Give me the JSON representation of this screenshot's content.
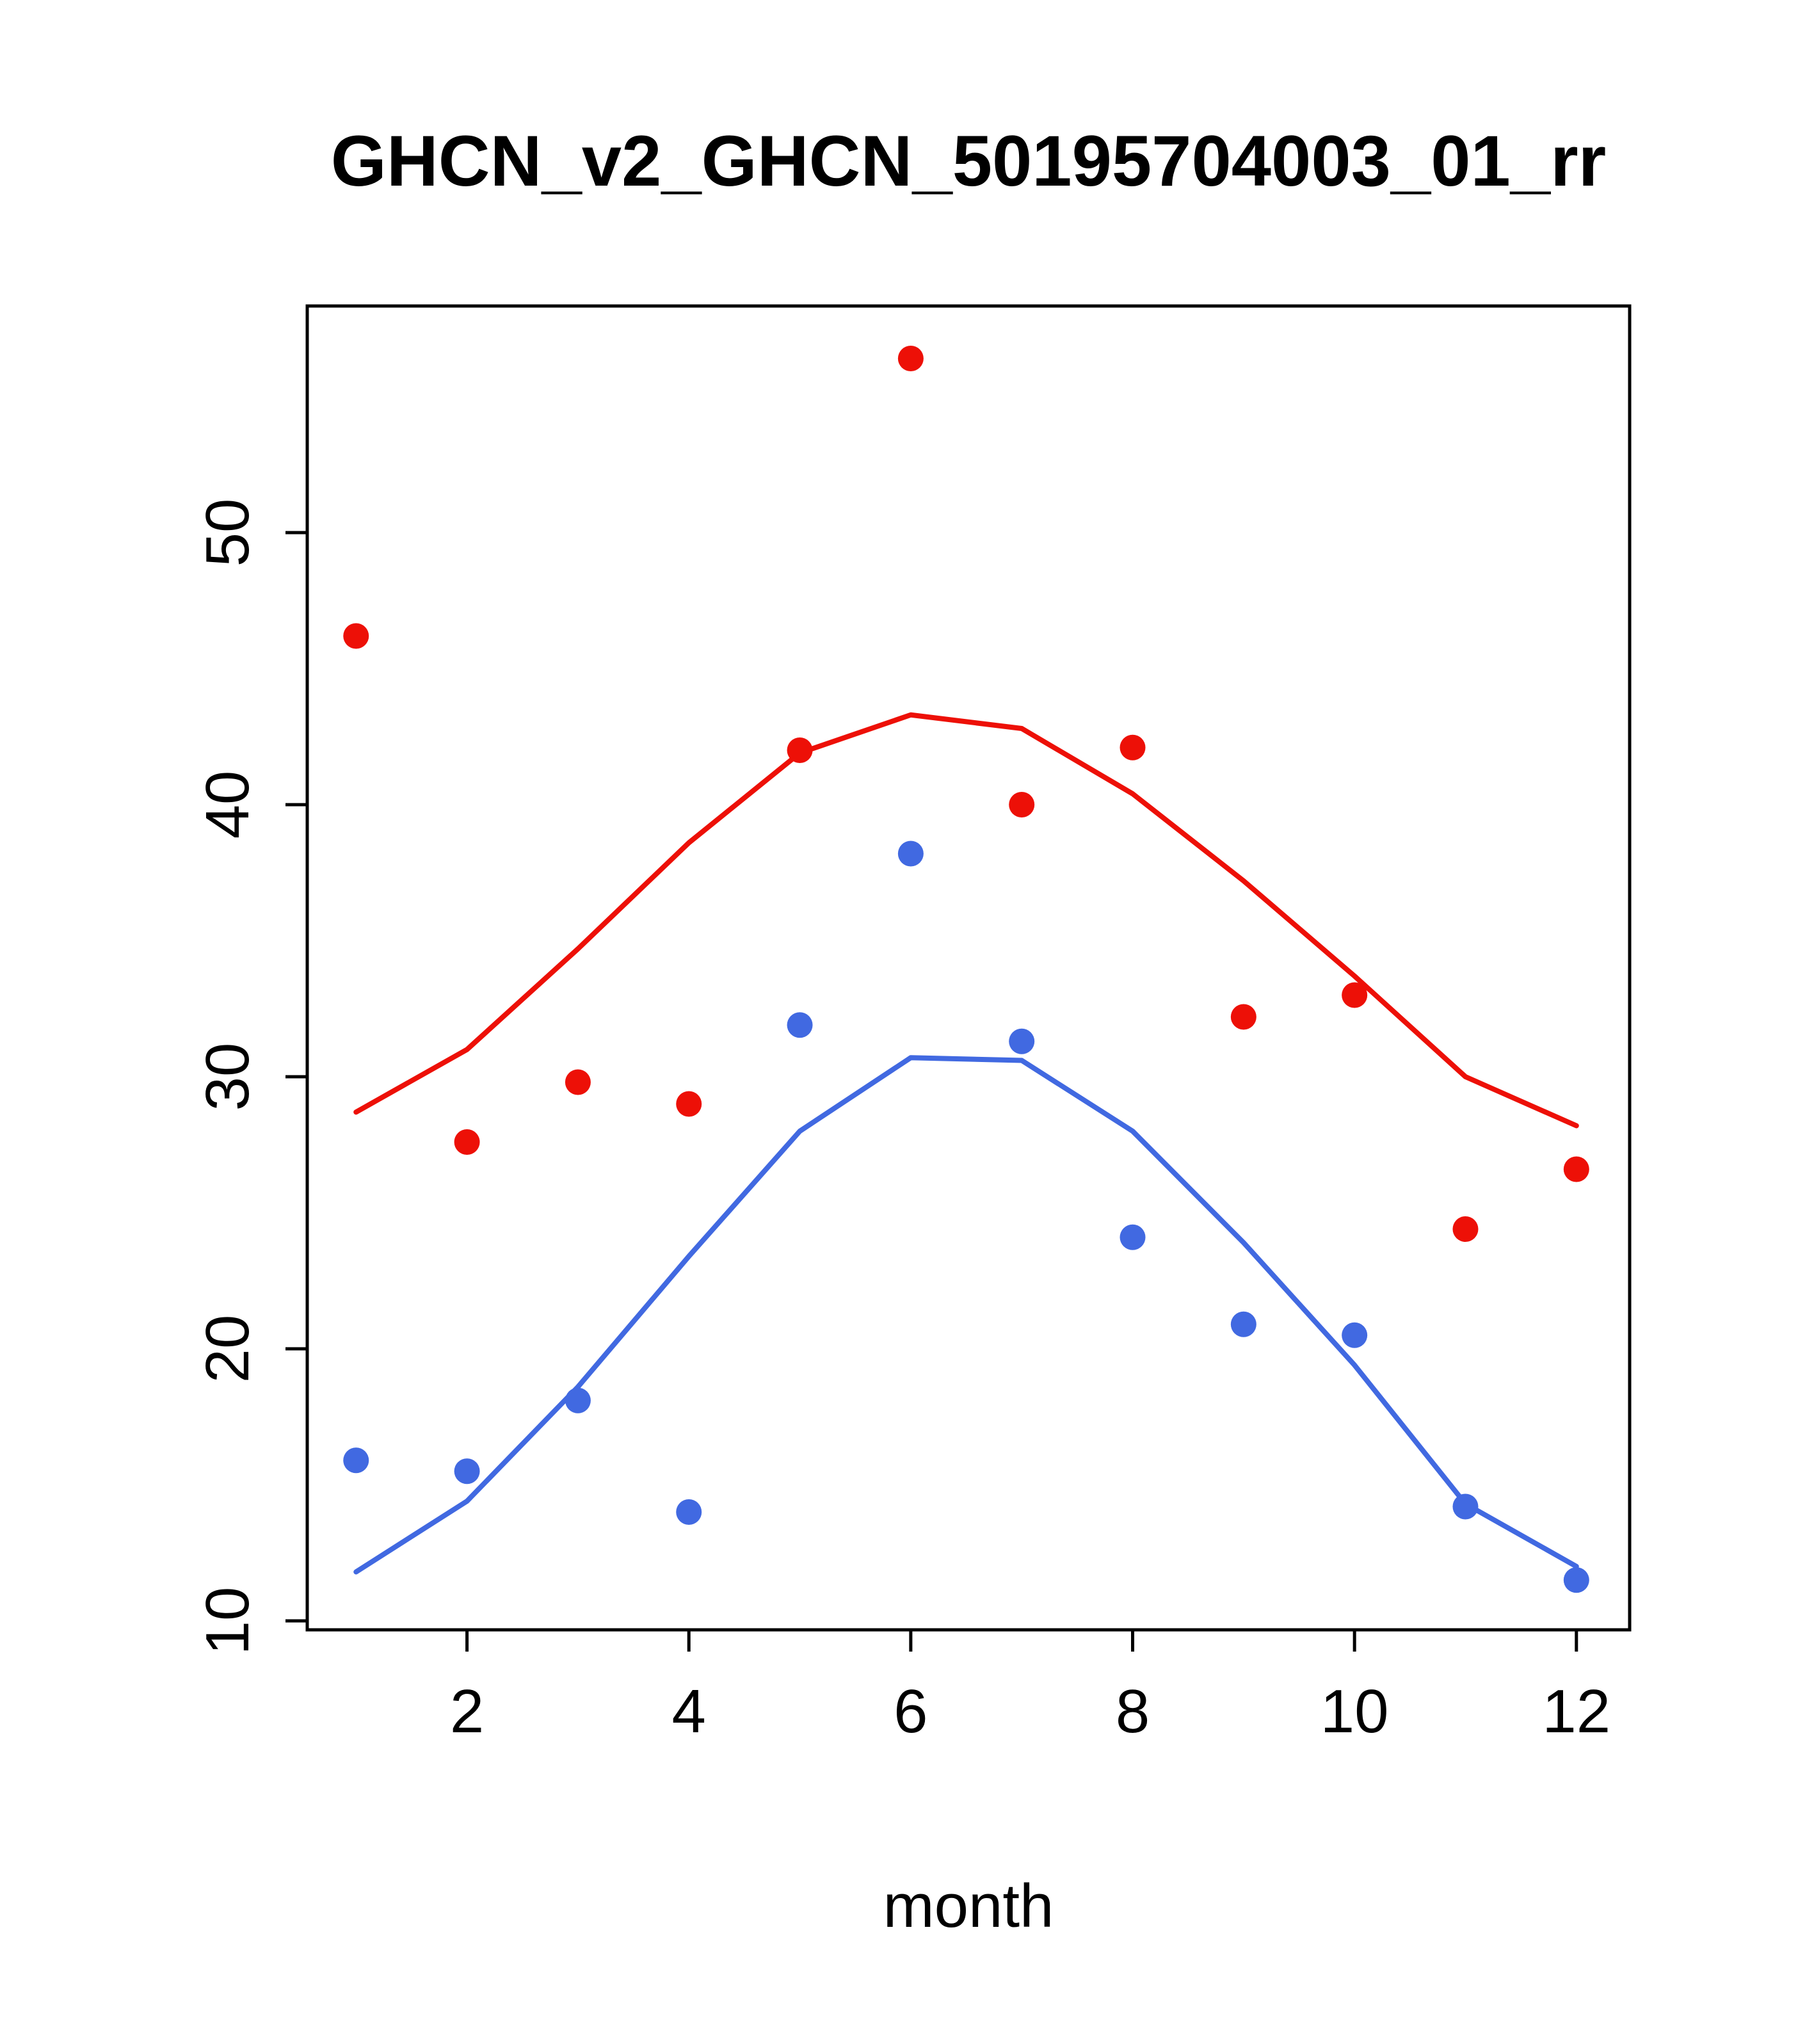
{
  "chart_data": {
    "type": "scatter",
    "title": "GHCN_v2_GHCN_50195704003_01_rr",
    "xlabel": "month",
    "ylabel": "",
    "xlim": [
      0.56,
      12.48
    ],
    "ylim": [
      9.67,
      58.33
    ],
    "x_ticks": [
      2,
      4,
      6,
      8,
      10,
      12
    ],
    "y_ticks": [
      10,
      20,
      30,
      40,
      50
    ],
    "grid": false,
    "legend": "none",
    "x": [
      1,
      2,
      3,
      4,
      5,
      6,
      7,
      8,
      9,
      10,
      11,
      12
    ],
    "series": [
      {
        "name": "red-points",
        "render": "points",
        "color": "#ED1007",
        "values": [
          46.2,
          27.6,
          29.8,
          29.0,
          42.0,
          56.4,
          40.0,
          42.1,
          32.2,
          33.0,
          24.4,
          26.6
        ]
      },
      {
        "name": "red-line",
        "render": "line",
        "color": "#ED1007",
        "values": [
          28.7,
          31.0,
          34.7,
          38.6,
          41.9,
          43.3,
          42.8,
          40.4,
          37.2,
          33.7,
          30.0,
          28.2
        ]
      },
      {
        "name": "blue-points",
        "render": "points",
        "color": "#4169E1",
        "values": [
          15.9,
          15.5,
          18.1,
          14.0,
          31.9,
          38.2,
          31.3,
          24.1,
          20.9,
          20.5,
          14.2,
          11.5
        ]
      },
      {
        "name": "blue-line",
        "render": "line",
        "color": "#4169E1",
        "values": [
          11.8,
          14.4,
          18.6,
          23.4,
          28.0,
          30.7,
          30.6,
          28.0,
          23.9,
          19.4,
          14.3,
          12.0
        ]
      }
    ]
  }
}
